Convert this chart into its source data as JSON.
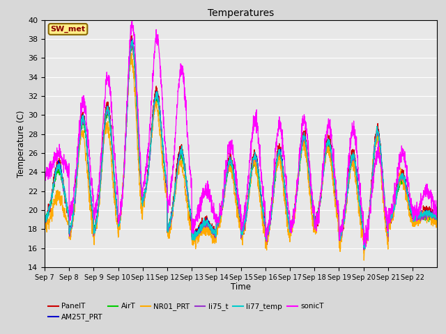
{
  "title": "Temperatures",
  "xlabel": "Time",
  "ylabel": "Temperature (C)",
  "ylim": [
    14,
    40
  ],
  "series": [
    "PanelT",
    "AM25T_PRT",
    "AirT",
    "NR01_PRT",
    "li75_t",
    "li77_temp",
    "sonicT"
  ],
  "colors": [
    "#cc0000",
    "#0000cc",
    "#00cc00",
    "#ffaa00",
    "#9933cc",
    "#00cccc",
    "#ff00ff"
  ],
  "x_tick_labels": [
    "Sep 7",
    "Sep 8",
    "Sep 9",
    "Sep 10",
    "Sep 11",
    "Sep 12",
    "Sep 13",
    "Sep 14",
    "Sep 15",
    "Sep 16",
    "Sep 17",
    "Sep 18",
    "Sep 19",
    "Sep 20",
    "Sep 21",
    "Sep 22"
  ],
  "annotation_text": "SW_met",
  "annotation_bg": "#ffee88",
  "annotation_border": "#886600",
  "plot_bg": "#e8e8e8",
  "grid_color": "#ffffff",
  "n_days": 16,
  "points_per_day": 144,
  "day_maxes_panel": [
    25.0,
    30.0,
    31.0,
    38.0,
    32.5,
    26.5,
    19.0,
    25.5,
    26.0,
    26.5,
    28.0,
    27.5,
    26.0,
    28.5,
    24.0,
    20.0
  ],
  "day_mins_panel": [
    18.5,
    17.0,
    17.0,
    17.5,
    20.5,
    17.5,
    17.0,
    18.0,
    17.0,
    16.5,
    17.5,
    18.0,
    16.5,
    15.5,
    18.5,
    19.0
  ],
  "day_maxes_sonic": [
    26.0,
    31.5,
    34.0,
    39.5,
    38.0,
    35.0,
    22.0,
    27.0,
    29.5,
    29.0,
    29.5,
    29.0,
    28.5,
    26.0,
    26.0,
    22.0
  ],
  "day_mins_sonic": [
    23.5,
    19.0,
    19.0,
    18.0,
    22.0,
    20.0,
    18.5,
    18.5,
    18.0,
    17.0,
    17.5,
    18.0,
    17.0,
    16.5,
    19.0,
    19.5
  ],
  "day_maxes_nr01": [
    21.5,
    28.0,
    29.0,
    36.0,
    31.0,
    25.0,
    18.0,
    24.5,
    25.0,
    25.5,
    27.0,
    26.5,
    25.0,
    27.5,
    23.5,
    19.5
  ],
  "day_mins_nr01": [
    18.0,
    16.5,
    16.5,
    17.0,
    20.0,
    17.0,
    16.5,
    17.5,
    16.5,
    16.0,
    17.0,
    17.5,
    16.0,
    15.0,
    18.0,
    18.5
  ]
}
